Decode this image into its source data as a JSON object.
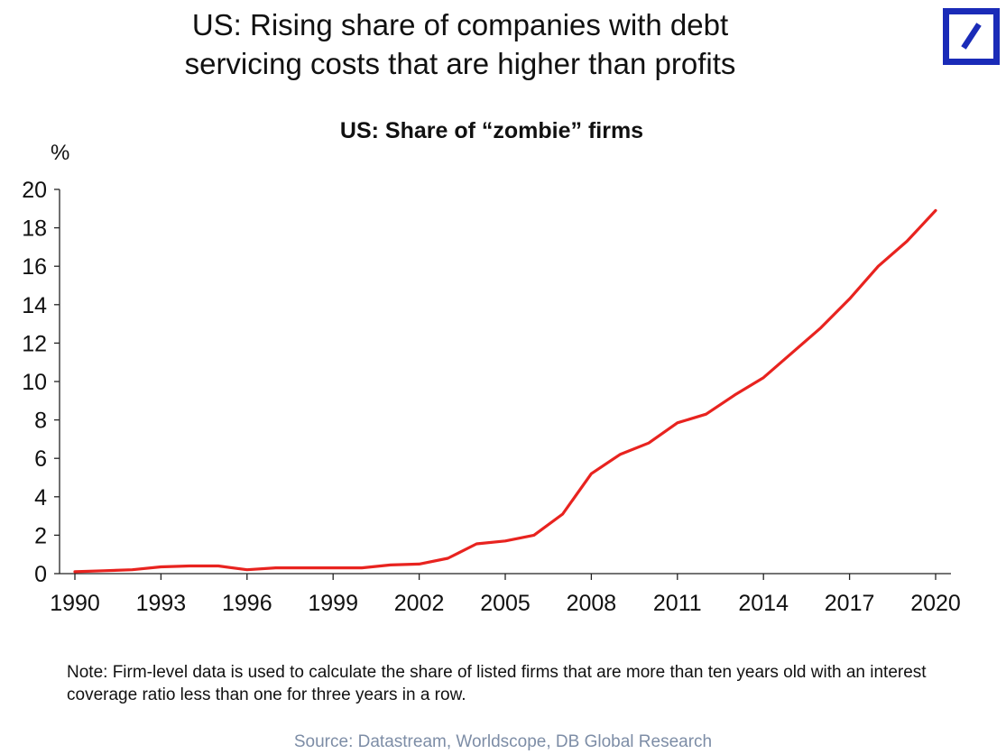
{
  "headline": {
    "line1": "US: Rising share of companies with debt",
    "line2": "servicing costs that are higher than profits"
  },
  "logo": {
    "icon": "deutsche-bank-slash-logo",
    "color": "#1a2bb8"
  },
  "chart_data": {
    "type": "line",
    "title": "US: Share of “zombie” firms",
    "ylabel": "%",
    "xlabel": "",
    "ylim": [
      0,
      20
    ],
    "xlim": [
      1990,
      2021
    ],
    "y_ticks": [
      0,
      2,
      4,
      6,
      8,
      10,
      12,
      14,
      16,
      18,
      20
    ],
    "x_ticks": [
      1990,
      1993,
      1996,
      1999,
      2002,
      2005,
      2008,
      2011,
      2014,
      2017,
      2020
    ],
    "grid": false,
    "legend": "none",
    "series": [
      {
        "color": "#e8231f",
        "x": [
          1990,
          1991,
          1992,
          1993,
          1994,
          1995,
          1996,
          1997,
          1998,
          1999,
          2000,
          2001,
          2002,
          2003,
          2004,
          2005,
          2006,
          2007,
          2008,
          2009,
          2010,
          2011,
          2012,
          2013,
          2014,
          2015,
          2016,
          2017,
          2018,
          2019,
          2020
        ],
        "y": [
          0.1,
          0.15,
          0.2,
          0.35,
          0.4,
          0.4,
          0.2,
          0.3,
          0.3,
          0.3,
          0.3,
          0.45,
          0.5,
          0.8,
          1.55,
          1.7,
          2.0,
          3.1,
          5.2,
          6.2,
          6.8,
          7.85,
          8.3,
          9.3,
          10.2,
          11.5,
          12.8,
          14.3,
          16.0,
          17.3,
          18.9
        ]
      }
    ]
  },
  "note": "Note: Firm-level data is used to calculate the share of listed firms that are more than ten years old with an interest coverage ratio less than one for three years in a row.",
  "source": "Source: Datastream, Worldscope, DB Global Research"
}
